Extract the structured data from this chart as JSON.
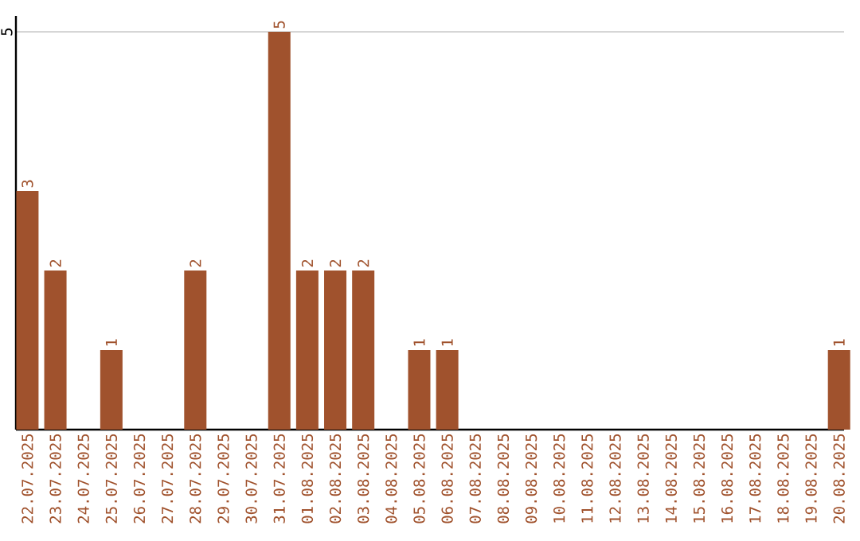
{
  "chart_data": {
    "type": "bar",
    "categories": [
      "22.07.2025",
      "23.07.2025",
      "24.07.2025",
      "25.07.2025",
      "26.07.2025",
      "27.07.2025",
      "28.07.2025",
      "29.07.2025",
      "30.07.2025",
      "31.07.2025",
      "01.08.2025",
      "02.08.2025",
      "03.08.2025",
      "04.08.2025",
      "05.08.2025",
      "06.08.2025",
      "07.08.2025",
      "08.08.2025",
      "09.08.2025",
      "10.08.2025",
      "11.08.2025",
      "12.08.2025",
      "13.08.2025",
      "14.08.2025",
      "15.08.2025",
      "16.08.2025",
      "17.08.2025",
      "18.08.2025",
      "19.08.2025",
      "20.08.2025"
    ],
    "values": [
      3,
      2,
      0,
      1,
      0,
      0,
      2,
      0,
      0,
      5,
      2,
      2,
      2,
      0,
      1,
      1,
      0,
      0,
      0,
      0,
      0,
      0,
      0,
      0,
      0,
      0,
      0,
      0,
      0,
      1
    ],
    "value_labels": [
      "3",
      "2",
      null,
      "1",
      null,
      null,
      "2",
      null,
      null,
      "5",
      "2",
      "2",
      "2",
      null,
      "1",
      "1",
      null,
      null,
      null,
      null,
      null,
      null,
      null,
      null,
      null,
      null,
      null,
      null,
      null,
      "1"
    ],
    "color": "#a0522d",
    "ylim": [
      0,
      5.2
    ],
    "yticks": [
      5
    ],
    "grid": "y"
  }
}
